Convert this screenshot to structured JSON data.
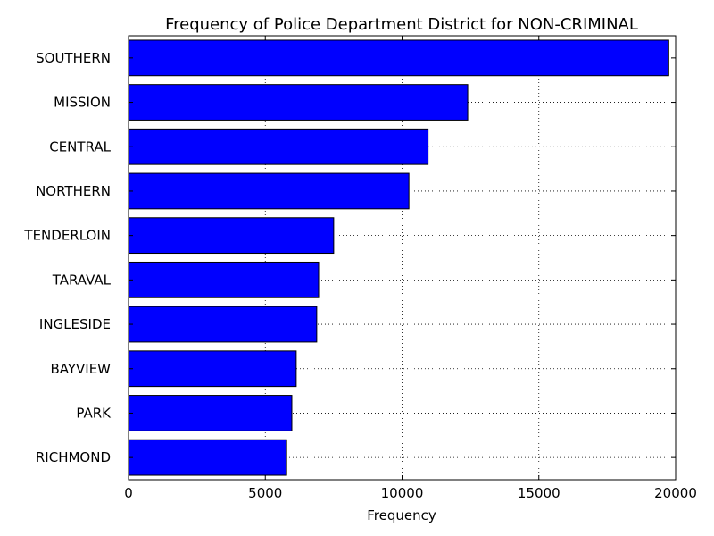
{
  "chart_data": {
    "type": "bar",
    "orientation": "horizontal",
    "title": "Frequency of Police Department District for NON-CRIMINAL",
    "xlabel": "Frequency",
    "ylabel": "",
    "xlim": [
      0,
      20000
    ],
    "xticks": [
      0,
      5000,
      10000,
      15000,
      20000
    ],
    "grid": true,
    "bar_color": "#0000ff",
    "categories": [
      "SOUTHERN",
      "MISSION",
      "CENTRAL",
      "NORTHERN",
      "TENDERLOIN",
      "TARAVAL",
      "INGLESIDE",
      "BAYVIEW",
      "PARK",
      "RICHMOND"
    ],
    "values": [
      19750,
      12400,
      10950,
      10250,
      7500,
      6950,
      6880,
      6130,
      5970,
      5780
    ]
  }
}
